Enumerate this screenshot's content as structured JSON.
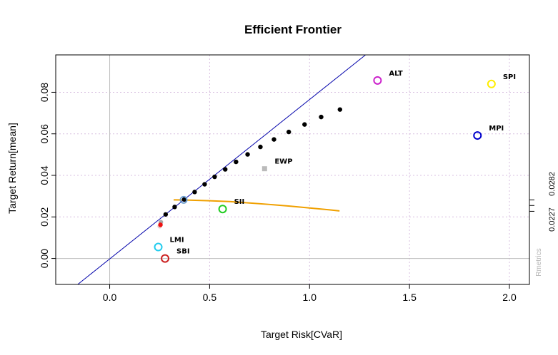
{
  "chart_data": {
    "type": "scatter",
    "title": "Efficient Frontier",
    "xlabel": "Target Risk[CVaR]",
    "ylabel": "Target Return[mean]",
    "xlim": [
      -0.27,
      2.1
    ],
    "ylim": [
      -0.0125,
      0.098
    ],
    "xticks": [
      0.0,
      0.5,
      1.0,
      1.5,
      2.0
    ],
    "xtick_labels": [
      "0.0",
      "0.5",
      "1.0",
      "1.5",
      "2.0"
    ],
    "yticks": [
      0.0,
      0.02,
      0.04,
      0.06,
      0.08
    ],
    "ytick_labels": [
      "0.00",
      "0.02",
      "0.04",
      "0.06",
      "0.08"
    ],
    "grid": true,
    "frontier": {
      "x": [
        0.25,
        0.256,
        0.28,
        0.325,
        0.373,
        0.425,
        0.475,
        0.525,
        0.578,
        0.632,
        0.69,
        0.754,
        0.822,
        0.896,
        0.975,
        1.058,
        1.152
      ],
      "y": [
        0.0155,
        0.0175,
        0.0212,
        0.0248,
        0.0284,
        0.032,
        0.0357,
        0.0393,
        0.0429,
        0.0465,
        0.0501,
        0.0537,
        0.0573,
        0.0609,
        0.0645,
        0.0681,
        0.0717
      ],
      "colors": [
        "#e8d0d0",
        "#aaaaaa",
        "#000000",
        "#000000",
        "#000000",
        "#000000",
        "#000000",
        "#000000",
        "#000000",
        "#000000",
        "#000000",
        "#000000",
        "#000000",
        "#000000",
        "#000000",
        "#000000",
        "#000000"
      ]
    },
    "min_variance_point": {
      "x": 0.254,
      "y": 0.0162,
      "color": "#ee1111"
    },
    "tangency_line": {
      "points": [
        [
          -0.16,
          -0.0125
        ],
        [
          1.28,
          0.098
        ]
      ],
      "color": "#0000aa"
    },
    "sharpe_curve": {
      "x": [
        0.32,
        0.4,
        0.5,
        0.6,
        0.7,
        0.8,
        0.9,
        1.0,
        1.1,
        1.15
      ],
      "y": [
        0.0282,
        0.0281,
        0.0278,
        0.0274,
        0.0267,
        0.026,
        0.0252,
        0.0243,
        0.0234,
        0.0229
      ],
      "color": "#f0a000"
    },
    "tangency_marker": {
      "x": 0.37,
      "y": 0.0282,
      "color": "#6fa0d0"
    },
    "assets": [
      {
        "name": "SBI",
        "x": 0.277,
        "y": 0.0,
        "color": "#cc2222"
      },
      {
        "name": "SPI",
        "x": 1.91,
        "y": 0.084,
        "color": "#ffee00"
      },
      {
        "name": "SII",
        "x": 0.565,
        "y": 0.0238,
        "color": "#22cc22"
      },
      {
        "name": "LMI",
        "x": 0.243,
        "y": 0.0055,
        "color": "#22ccee"
      },
      {
        "name": "MPI",
        "x": 1.84,
        "y": 0.0592,
        "color": "#0000cc"
      },
      {
        "name": "ALT",
        "x": 1.34,
        "y": 0.0857,
        "color": "#cc22cc"
      }
    ],
    "ewp": {
      "name": "EWP",
      "x": 0.775,
      "y": 0.0432,
      "color": "#bbbbbb"
    },
    "right_axis": {
      "tick_values": [
        0.0227,
        0.0255,
        0.0282
      ],
      "labels": [
        "0.0227",
        "0.0282"
      ]
    },
    "credit": "Rmetrics",
    "colors": {
      "grid": "#d8bfe0",
      "zero_lines": "#bdbdbd"
    }
  }
}
